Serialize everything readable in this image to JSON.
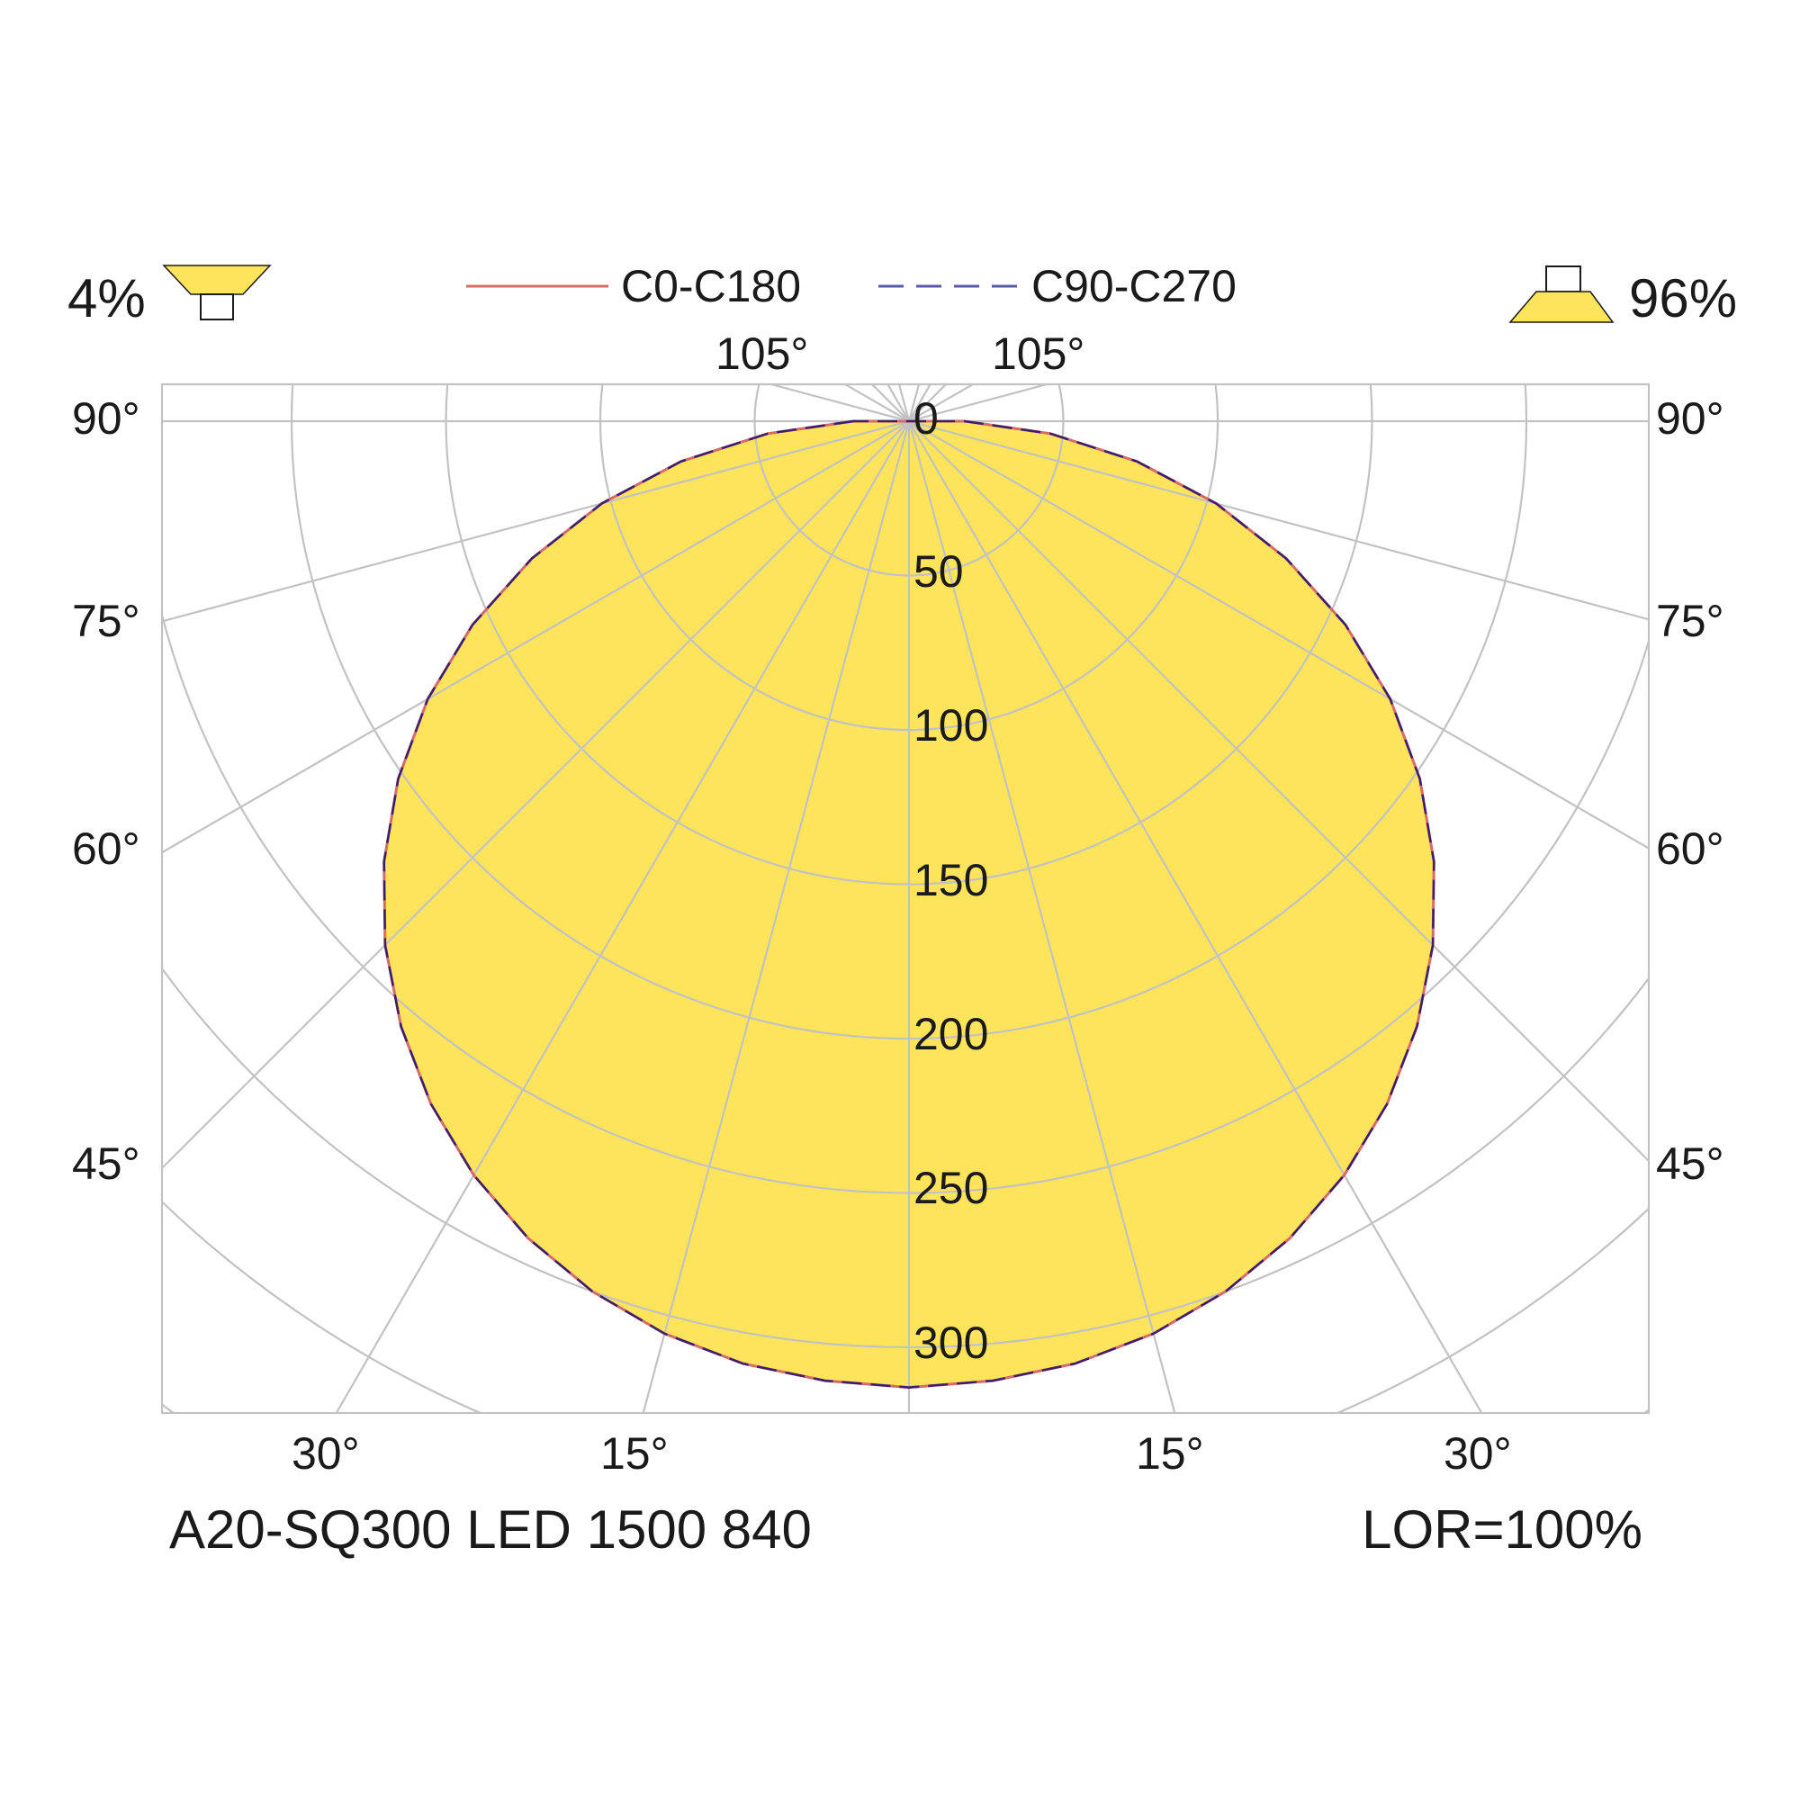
{
  "downward_ratio": "96%",
  "upward_ratio": "4%",
  "product_name": "A20-SQ300 LED 1500 840",
  "lor": "LOR=100%",
  "colors": {
    "fill": "#fde45a",
    "c0_c180": "#d46a6a",
    "c90_c270": "#5a5aaa",
    "outline": "#3a1f6e",
    "grid": "#c2c2c2"
  },
  "chart_data": {
    "type": "polar-area",
    "radial_ticks": [
      "0",
      "50",
      "100",
      "150",
      "200",
      "250",
      "300"
    ],
    "radial_values": [
      0,
      50,
      100,
      150,
      200,
      250,
      300
    ],
    "angle_ticks": {
      "top": [
        "105°",
        "105°"
      ],
      "left": [
        "90°",
        "75°",
        "60°",
        "45°"
      ],
      "right": [
        "90°",
        "75°",
        "60°",
        "45°"
      ],
      "bottom": [
        "30°",
        "15°",
        "15°",
        "30°"
      ]
    },
    "series": [
      {
        "name": "C0-C180",
        "style": "solid",
        "angles_deg": [
          0,
          5,
          10,
          15,
          20,
          25,
          30,
          35,
          40,
          45,
          50,
          55,
          60,
          65,
          70,
          75,
          80,
          85,
          90
        ],
        "values": [
          313,
          312,
          310,
          306,
          300,
          292,
          282,
          270,
          256,
          240,
          222,
          202,
          180,
          156,
          130,
          103,
          75,
          46,
          18
        ]
      },
      {
        "name": "C90-C270",
        "style": "dashed",
        "angles_deg": [
          0,
          5,
          10,
          15,
          20,
          25,
          30,
          35,
          40,
          45,
          50,
          55,
          60,
          65,
          70,
          75,
          80,
          85,
          90
        ],
        "values": [
          313,
          312,
          310,
          306,
          300,
          292,
          282,
          270,
          256,
          240,
          222,
          202,
          180,
          156,
          130,
          103,
          75,
          46,
          18
        ]
      }
    ]
  }
}
